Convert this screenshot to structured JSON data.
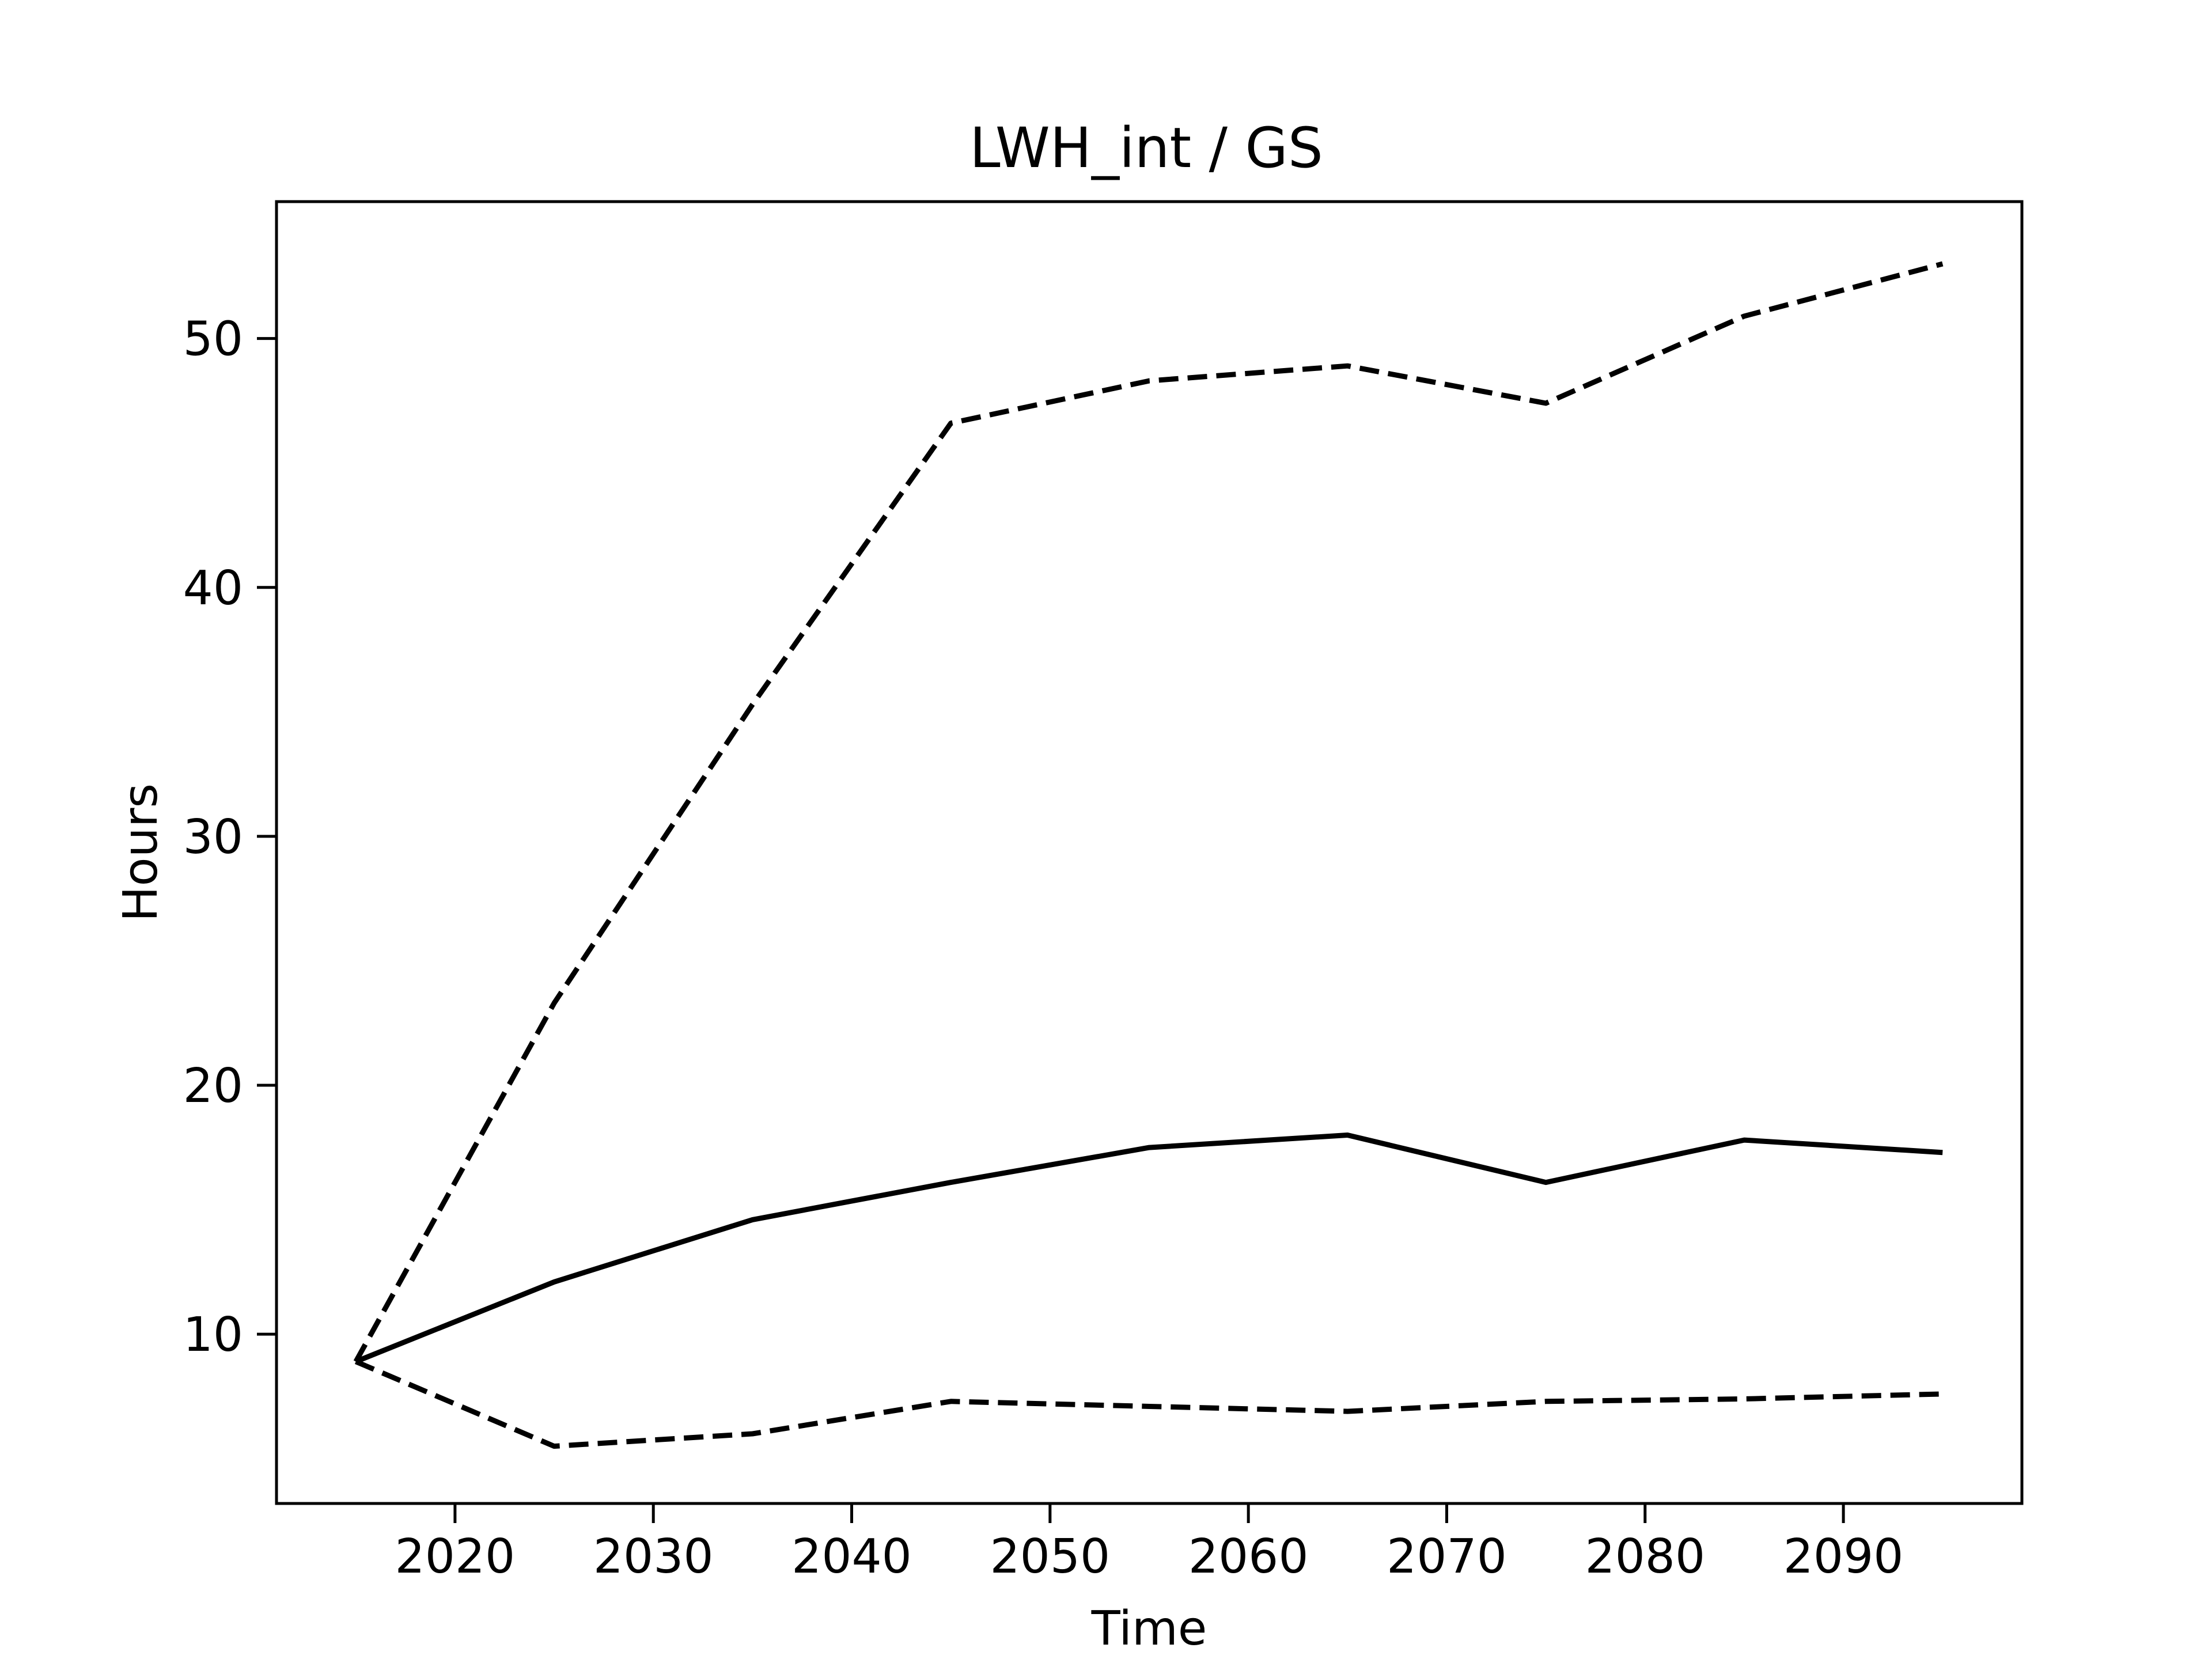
{
  "chart_data": {
    "type": "line",
    "title": "LWH_int / GS",
    "xlabel": "Time",
    "ylabel": "Hours",
    "x": [
      2015,
      2025,
      2035,
      2045,
      2055,
      2065,
      2075,
      2085,
      2095
    ],
    "xlim": [
      2011,
      2099
    ],
    "ylim": [
      3.2,
      55.5
    ],
    "xticks": [
      2020,
      2030,
      2040,
      2050,
      2060,
      2070,
      2080,
      2090
    ],
    "yticks": [
      10,
      20,
      30,
      40,
      50
    ],
    "grid": false,
    "legend": "none",
    "series": [
      {
        "style": "solid",
        "color": "#000000",
        "values": [
          8.9,
          12.1,
          14.6,
          16.1,
          17.5,
          18.0,
          16.1,
          17.8,
          17.3
        ]
      },
      {
        "style": "dashed",
        "color": "#000000",
        "values": [
          8.9,
          23.3,
          35.3,
          46.6,
          48.3,
          48.9,
          47.4,
          50.9,
          53.0
        ]
      },
      {
        "style": "dashed",
        "color": "#000000",
        "values": [
          8.9,
          5.5,
          6.0,
          7.3,
          7.1,
          6.9,
          7.3,
          7.4,
          7.6
        ]
      }
    ]
  }
}
